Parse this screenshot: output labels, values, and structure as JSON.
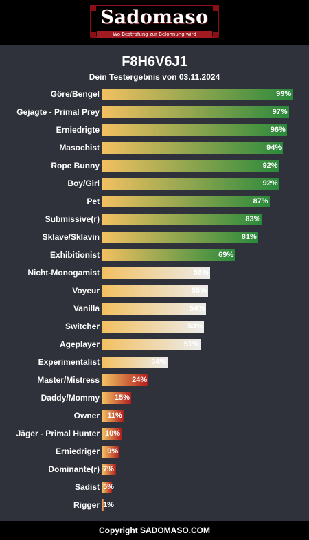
{
  "header": {
    "logo_text": "Sadomaso",
    "tagline": "Wo Bestrafung zur Belohnung wird"
  },
  "title": "F8H6V6J1",
  "subtitle": "Dein Testergebnis von 03.11.2024",
  "footer": "Copyright SADOMASO.COM",
  "colors": {
    "background": "#2f323a",
    "bar_start": "#f2c061",
    "high_end": "#2a8a3c",
    "mid_end": "#ececec",
    "low_end": "#b11d1d"
  },
  "chart_data": {
    "type": "bar",
    "orientation": "horizontal",
    "xlim": [
      0,
      100
    ],
    "categories": [
      "Göre/Bengel",
      "Gejagte - Primal Prey",
      "Erniedrigte",
      "Masochist",
      "Rope Bunny",
      "Boy/Girl",
      "Pet",
      "Submissive(r)",
      "Sklave/Sklavin",
      "Exhibitionist",
      "Nicht-Monogamist",
      "Voyeur",
      "Vanilla",
      "Switcher",
      "Ageplayer",
      "Experimentalist",
      "Master/Mistress",
      "Daddy/Mommy",
      "Owner",
      "Jäger - Primal Hunter",
      "Erniedriger",
      "Dominante(r)",
      "Sadist",
      "Rigger"
    ],
    "values": [
      99,
      97,
      96,
      94,
      92,
      92,
      87,
      83,
      81,
      69,
      56,
      55,
      54,
      53,
      51,
      34,
      24,
      15,
      11,
      10,
      9,
      7,
      5,
      1
    ],
    "value_labels": [
      "99%",
      "97%",
      "96%",
      "94%",
      "92%",
      "92%",
      "87%",
      "83%",
      "81%",
      "69%",
      "56%",
      "55%",
      "54%",
      "53%",
      "51%",
      "34%",
      "24%",
      "15%",
      "11%",
      "10%",
      "9%",
      "7%",
      "5%",
      "1%"
    ]
  }
}
